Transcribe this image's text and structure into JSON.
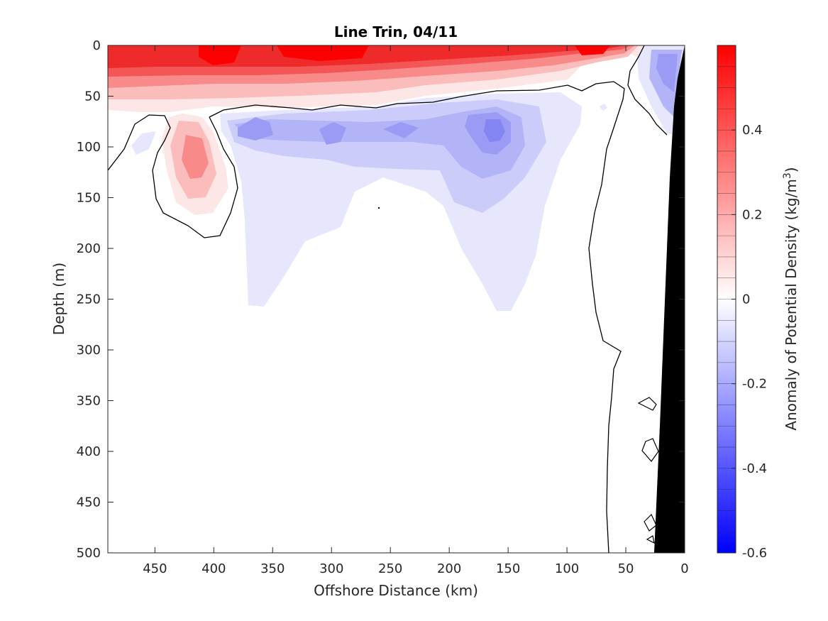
{
  "chart_data": {
    "type": "heatmap",
    "subtype": "filled-contour-section",
    "title": "Line Trin, 04/11",
    "xlabel": "Offshore Distance (km)",
    "ylabel": "Depth (m)",
    "xlim": [
      490,
      0
    ],
    "ylim": [
      500,
      0
    ],
    "x_reversed": true,
    "y_reversed": true,
    "x_ticks": [
      "450",
      "400",
      "350",
      "300",
      "250",
      "200",
      "150",
      "100",
      "50",
      "0"
    ],
    "y_ticks": [
      "0",
      "50",
      "100",
      "150",
      "200",
      "250",
      "300",
      "350",
      "400",
      "450",
      "500"
    ],
    "colorbar": {
      "label_main": "Anomaly of Potential Density (kg/m",
      "label_sup": "3",
      "label_end": ")",
      "range": [
        -0.6,
        0.6
      ],
      "ticks": [
        "0.4",
        "0.2",
        "0",
        "-0.2",
        "-0.4",
        "-0.6"
      ],
      "levels": 24,
      "positive_color": "#ff0000",
      "negative_color": "#0000ff",
      "neutral_color": "#ffffff"
    },
    "contour_line_level": 0,
    "features": [
      {
        "name": "surface-positive-layer",
        "x": [
          490,
          0
        ],
        "depth_range": [
          0,
          55
        ],
        "max_anomaly": 0.55
      },
      {
        "name": "positive-tongue",
        "x_center": 410,
        "depth_range": [
          70,
          165
        ],
        "max_anomaly": 0.25
      },
      {
        "name": "negative-lens",
        "x_center": 160,
        "depth_center": 80,
        "min_anomaly": -0.3
      },
      {
        "name": "negative-region",
        "x": [
          380,
          100
        ],
        "depth_range": [
          55,
          260
        ],
        "min_anomaly": -0.2
      },
      {
        "name": "nearshore-negative",
        "x_center": 15,
        "depth_center": 25,
        "min_anomaly": -0.3
      },
      {
        "name": "bathymetry-mask",
        "x": [
          30,
          0
        ],
        "depth_range": [
          0,
          500
        ]
      }
    ]
  }
}
